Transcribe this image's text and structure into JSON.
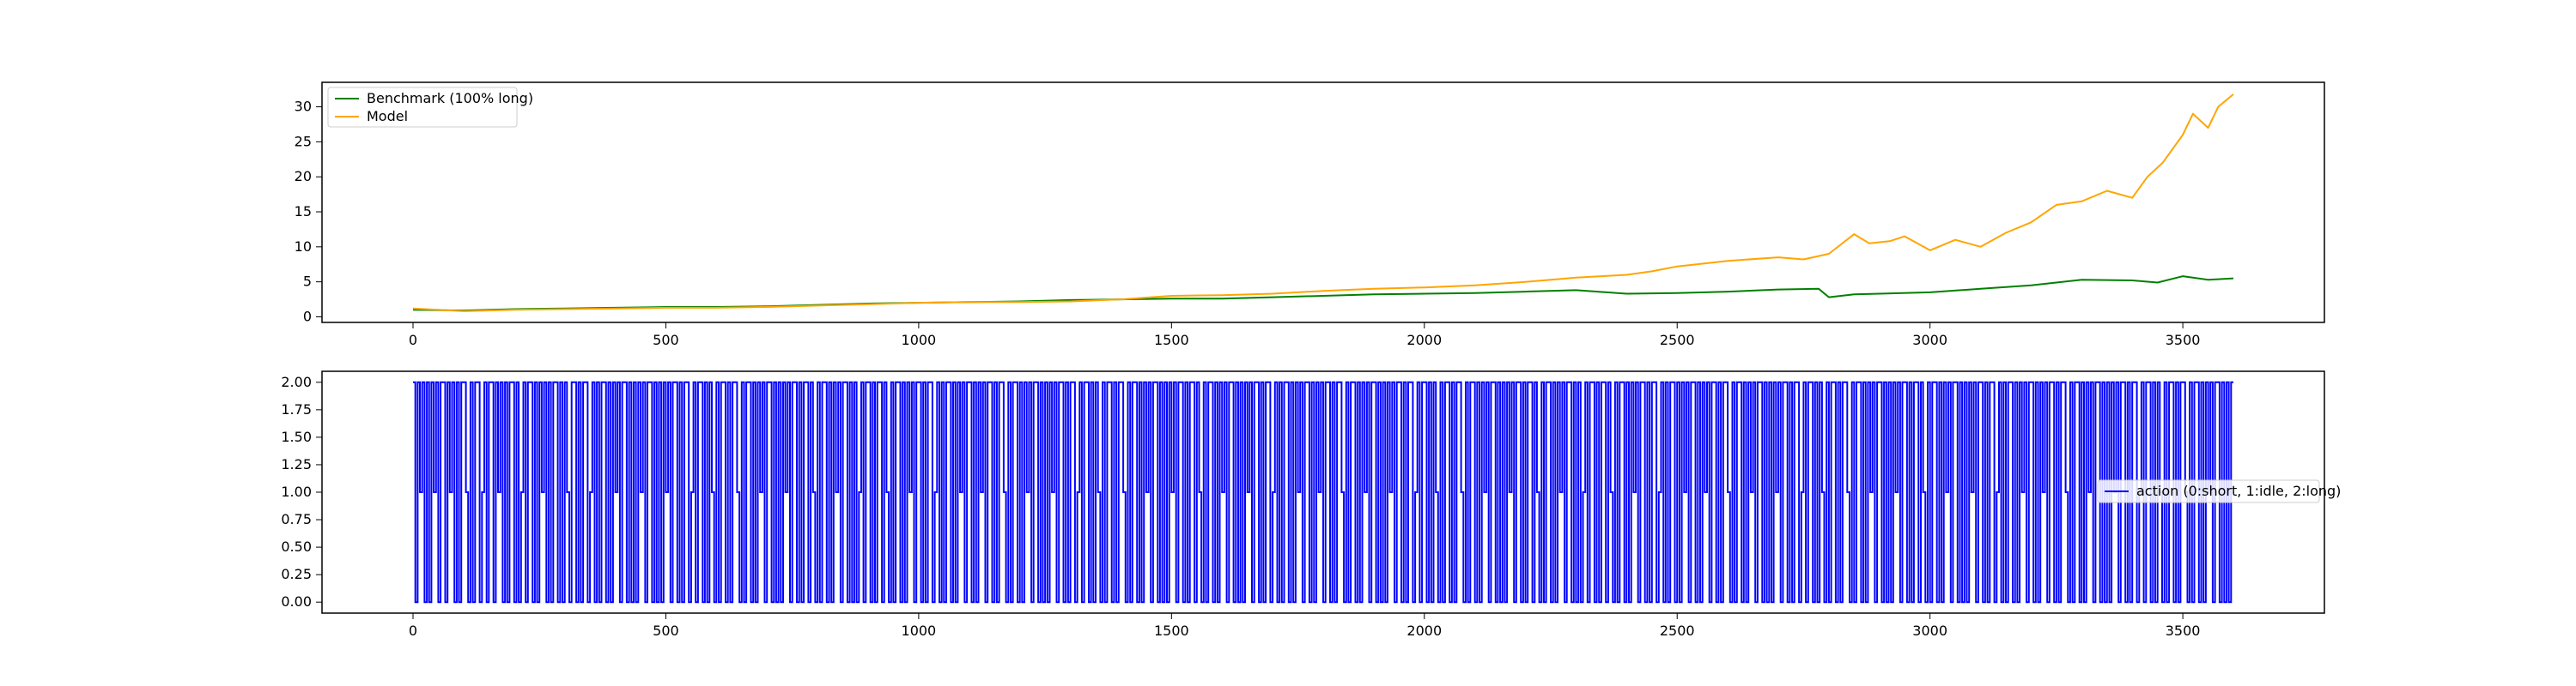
{
  "chart_data": [
    {
      "type": "line",
      "title": "",
      "xlabel": "",
      "ylabel": "",
      "xlim": [
        -180,
        3780
      ],
      "ylim": [
        -0.8,
        33.5
      ],
      "x_ticks": [
        0,
        500,
        1000,
        1500,
        2000,
        2500,
        3000,
        3500
      ],
      "y_ticks": [
        0,
        5,
        10,
        15,
        20,
        25,
        30
      ],
      "grid": false,
      "legend_position": "upper left",
      "series": [
        {
          "name": "Benchmark (100% long)",
          "color": "#008000",
          "x": [
            0,
            100,
            200,
            300,
            400,
            500,
            600,
            700,
            800,
            900,
            1000,
            1100,
            1200,
            1300,
            1400,
            1500,
            1600,
            1700,
            1800,
            1900,
            2000,
            2100,
            2200,
            2300,
            2400,
            2500,
            2600,
            2700,
            2780,
            2800,
            2850,
            2900,
            3000,
            3100,
            3200,
            3300,
            3400,
            3450,
            3500,
            3550,
            3600
          ],
          "y": [
            1.0,
            0.9,
            1.1,
            1.2,
            1.3,
            1.4,
            1.4,
            1.5,
            1.7,
            1.9,
            2.0,
            2.1,
            2.2,
            2.4,
            2.5,
            2.6,
            2.6,
            2.8,
            3.0,
            3.2,
            3.3,
            3.4,
            3.6,
            3.8,
            3.3,
            3.4,
            3.6,
            3.9,
            4.0,
            2.8,
            3.2,
            3.3,
            3.5,
            4.0,
            4.5,
            5.3,
            5.2,
            4.9,
            5.8,
            5.3,
            5.5
          ]
        },
        {
          "name": "Model",
          "color": "#ffa500",
          "x": [
            0,
            100,
            200,
            300,
            400,
            500,
            600,
            700,
            800,
            900,
            1000,
            1100,
            1200,
            1300,
            1400,
            1500,
            1600,
            1700,
            1800,
            1900,
            2000,
            2100,
            2200,
            2300,
            2400,
            2450,
            2500,
            2600,
            2700,
            2750,
            2800,
            2850,
            2880,
            2920,
            2950,
            3000,
            3050,
            3100,
            3150,
            3200,
            3250,
            3300,
            3350,
            3400,
            3430,
            3460,
            3500,
            3520,
            3550,
            3570,
            3600
          ],
          "y": [
            1.2,
            0.8,
            1.0,
            1.1,
            1.2,
            1.3,
            1.3,
            1.4,
            1.6,
            1.8,
            2.0,
            2.1,
            2.1,
            2.2,
            2.5,
            3.0,
            3.1,
            3.3,
            3.7,
            4.0,
            4.2,
            4.5,
            5.0,
            5.6,
            6.0,
            6.5,
            7.2,
            8.0,
            8.5,
            8.2,
            9.0,
            11.8,
            10.5,
            10.8,
            11.5,
            9.5,
            11.0,
            10.0,
            12.0,
            13.5,
            16.0,
            16.5,
            18.0,
            17.0,
            20.0,
            22.0,
            26.0,
            29.0,
            27.0,
            30.0,
            31.8
          ]
        }
      ]
    },
    {
      "type": "line",
      "subtype": "step",
      "title": "",
      "xlabel": "",
      "ylabel": "",
      "xlim": [
        -180,
        3780
      ],
      "ylim": [
        -0.1,
        2.1
      ],
      "x_ticks": [
        0,
        500,
        1000,
        1500,
        2000,
        2500,
        3000,
        3500
      ],
      "y_ticks": [
        0.0,
        0.25,
        0.5,
        0.75,
        1.0,
        1.25,
        1.5,
        1.75,
        2.0
      ],
      "y_tick_labels": [
        "0.00",
        "0.25",
        "0.50",
        "0.75",
        "1.00",
        "1.25",
        "1.50",
        "1.75",
        "2.00"
      ],
      "grid": false,
      "legend_position": "center right",
      "series": [
        {
          "name": "action (0:short, 1:idle, 2:long)",
          "color": "#0000ff",
          "length": 3600,
          "values": [
            2,
            0,
            2,
            1,
            2,
            0,
            2,
            0,
            2,
            1,
            2,
            0,
            2,
            2,
            0,
            2,
            1,
            2,
            0,
            2,
            0,
            2,
            2,
            1,
            0,
            2,
            0,
            2,
            2,
            0,
            1,
            2,
            0,
            2,
            2,
            0,
            2,
            1,
            2,
            0,
            2,
            0,
            2,
            2,
            0,
            2,
            0,
            1,
            2,
            0,
            2,
            2,
            0,
            2,
            0,
            2,
            1,
            2,
            0,
            2,
            0,
            2,
            2,
            0,
            2,
            0,
            2,
            1,
            0,
            2,
            2,
            0,
            2,
            0,
            2,
            2,
            0,
            1,
            2,
            0,
            2,
            0,
            2,
            2,
            0,
            2,
            0,
            2,
            1,
            2,
            0,
            2,
            2,
            0,
            2,
            0,
            2,
            0,
            2,
            1,
            2,
            0,
            2,
            2,
            0,
            2,
            0,
            2,
            0,
            2,
            1,
            2,
            0,
            2,
            2,
            0,
            2,
            0,
            2,
            2,
            0,
            1,
            2,
            0,
            2,
            2,
            0,
            2,
            0,
            2,
            1,
            0,
            2,
            0,
            2,
            2,
            0,
            2,
            0,
            2,
            2,
            1,
            0,
            2,
            0,
            2,
            2,
            0,
            2,
            0,
            2,
            1,
            2,
            0,
            2,
            2,
            0,
            2,
            0,
            2,
            0,
            2,
            1,
            2,
            0,
            2,
            2,
            0,
            2,
            0,
            2,
            2,
            0,
            2,
            1,
            0,
            2,
            0,
            2,
            2,
            0,
            2,
            0,
            2,
            1,
            2,
            0,
            2,
            2,
            0,
            2,
            0,
            2,
            0,
            1,
            2,
            0,
            2,
            2,
            0,
            2,
            0,
            2,
            2,
            0,
            2,
            1,
            0,
            2,
            0,
            2,
            2,
            0,
            2,
            0,
            2,
            1,
            2,
            0,
            2,
            2,
            0,
            2,
            0,
            2,
            2,
            0,
            1,
            2,
            0,
            2,
            0,
            2,
            2,
            0,
            2,
            0,
            2,
            1,
            2,
            0,
            2,
            2,
            0,
            2,
            0,
            2,
            1,
            2,
            0,
            2,
            2,
            0,
            2,
            0,
            2,
            2,
            1,
            0,
            2,
            0,
            2,
            2,
            0,
            2,
            0,
            2,
            1,
            2,
            0,
            2,
            2,
            0,
            2,
            0,
            2,
            0,
            2,
            1,
            2,
            0,
            2,
            2,
            0,
            2,
            0,
            2,
            2,
            0,
            1,
            2,
            0,
            2,
            2,
            0,
            2,
            0,
            2,
            1,
            0,
            2,
            0,
            2,
            2,
            0,
            2,
            0,
            2,
            2,
            1,
            0,
            2,
            0,
            2,
            2,
            0,
            2,
            0,
            2,
            1,
            2,
            0,
            2,
            2,
            0,
            2,
            0,
            2,
            0,
            2,
            1,
            2,
            0,
            2,
            2,
            0,
            2,
            0,
            2,
            2,
            0,
            2,
            1,
            0,
            2,
            0,
            2,
            2,
            0,
            2,
            0,
            2,
            1,
            2,
            0,
            2,
            2,
            0,
            2,
            0,
            2,
            0,
            2,
            1,
            2,
            0,
            2,
            2,
            0,
            2,
            0,
            2,
            2,
            0,
            1,
            2,
            0,
            2,
            0,
            2,
            2,
            0,
            2,
            0,
            2,
            1,
            2,
            0,
            2,
            2,
            0,
            2,
            0,
            2,
            1,
            2,
            0,
            2,
            2,
            0,
            2,
            0,
            2,
            2,
            1,
            0,
            2,
            0,
            2,
            2,
            0,
            2,
            0,
            2,
            1,
            2,
            0,
            2,
            2,
            0,
            2,
            0,
            2,
            0,
            2,
            1,
            2,
            0,
            2,
            2,
            0,
            2,
            0,
            2,
            2,
            0,
            1,
            2,
            0,
            2,
            2,
            0,
            2,
            0,
            2,
            1,
            0,
            2,
            0,
            2,
            2,
            0,
            2,
            0,
            2,
            2,
            1,
            0,
            2,
            0,
            2,
            2,
            0,
            2,
            0,
            2,
            1,
            2,
            0,
            2,
            2,
            0,
            2,
            0,
            2,
            0,
            2,
            1,
            2,
            0,
            2,
            2,
            0,
            2,
            0,
            2,
            2,
            0,
            2,
            1,
            0,
            2,
            0,
            2,
            2,
            0,
            2,
            0,
            2,
            1,
            2,
            0,
            2,
            2,
            0,
            2,
            0,
            2,
            0,
            1,
            2,
            0,
            2,
            2,
            0,
            2,
            0,
            2,
            2,
            0,
            2,
            1,
            0,
            2,
            0,
            2,
            2,
            0,
            2,
            0,
            2,
            1,
            2,
            0,
            2,
            2,
            0,
            2,
            0,
            2,
            2,
            0,
            1,
            2,
            0,
            2,
            0,
            2,
            2,
            0,
            2,
            0,
            2,
            1,
            2,
            0,
            2,
            2,
            0,
            2,
            0,
            2,
            1,
            2,
            0,
            2,
            2,
            0,
            2,
            0,
            2,
            2,
            1,
            0,
            2,
            0,
            2,
            2,
            0,
            2,
            0,
            2,
            1,
            2,
            0,
            2,
            2,
            0,
            2,
            0,
            2,
            0,
            2,
            1,
            2,
            0,
            2,
            2,
            0,
            2,
            0,
            2,
            2,
            0,
            1,
            2,
            0,
            2,
            2,
            0,
            2,
            0,
            2,
            1,
            0,
            2,
            0,
            2,
            2,
            0,
            2,
            0,
            2,
            2,
            1,
            0,
            2,
            0,
            2,
            2,
            0,
            2,
            0,
            2,
            1,
            2,
            0,
            2,
            2,
            0,
            2,
            0,
            2,
            0,
            2,
            1,
            2,
            0,
            2,
            2,
            0,
            2,
            0,
            2,
            2,
            0,
            2,
            1,
            0,
            2,
            0,
            2,
            2,
            0,
            2,
            0,
            2,
            1,
            2,
            0,
            2,
            2,
            0,
            2,
            0,
            2,
            0,
            2,
            1,
            2,
            0,
            2,
            2,
            0,
            2,
            0,
            2,
            2,
            0,
            1,
            2,
            0,
            2,
            0,
            2,
            2,
            0,
            2,
            0,
            2,
            1,
            2,
            0,
            2,
            2,
            0,
            2,
            0,
            2,
            1,
            2,
            0,
            2,
            2,
            0,
            2,
            0,
            2,
            2,
            1,
            0,
            2,
            0,
            2,
            2,
            0,
            2,
            0,
            2,
            1,
            2,
            0,
            2,
            2,
            0,
            2,
            0,
            2,
            0,
            2,
            1,
            2,
            0,
            2,
            2,
            0,
            2,
            0,
            2,
            2,
            0,
            1,
            2,
            0,
            2,
            2,
            0,
            2,
            0,
            2,
            1,
            0,
            2,
            0,
            2,
            2,
            0,
            2,
            0,
            2,
            2,
            1,
            0,
            2,
            0,
            2,
            2,
            0,
            2,
            0,
            2,
            1,
            2,
            0,
            2,
            2,
            0,
            2,
            0,
            2,
            0,
            2
          ]
        }
      ]
    }
  ]
}
